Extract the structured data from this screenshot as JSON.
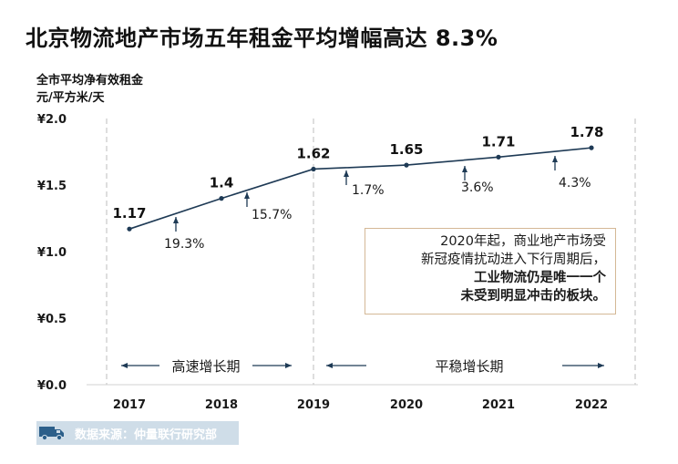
{
  "title": "北京物流地产市场五年租金平均增幅高达 8.3%",
  "colors": {
    "line": "#1e3a55",
    "callout_border": "#d4b896",
    "source_bg": "#cfdde8",
    "grid": "#c8c8c8"
  },
  "icons": {
    "source": "truck-icon"
  },
  "chart_data": {
    "type": "line",
    "title": "北京物流地产市场五年租金平均增幅高达 8.3%",
    "ylabel": [
      "全市平均净有效租金",
      "元/平方米/天"
    ],
    "xlabel": "",
    "categories": [
      "2017",
      "2018",
      "2019",
      "2020",
      "2021",
      "2022"
    ],
    "values": [
      1.17,
      1.4,
      1.62,
      1.65,
      1.71,
      1.78
    ],
    "value_labels": [
      "1.17",
      "1.4",
      "1.62",
      "1.65",
      "1.71",
      "1.78"
    ],
    "growth_labels": [
      "19.3%",
      "15.7%",
      "1.7%",
      "3.6%",
      "4.3%"
    ],
    "ylim": [
      0,
      2.0
    ],
    "yticks": [
      0,
      0.5,
      1.0,
      1.5,
      2.0
    ],
    "ytick_labels": [
      "¥0.0",
      "¥0.5",
      "¥1.0",
      "¥1.5",
      "¥2.0"
    ],
    "grid": "vertical dashed",
    "phases": [
      "高速增长期",
      "平稳增长期"
    ]
  },
  "callout": {
    "line1": "2020年起，商业地产市场受",
    "line2": "新冠疫情扰动进入下行周期后，",
    "line3": "工业物流仍是唯一一个",
    "line4": "未受到明显冲击的板块。"
  },
  "source": "数据来源：仲量联行研究部"
}
